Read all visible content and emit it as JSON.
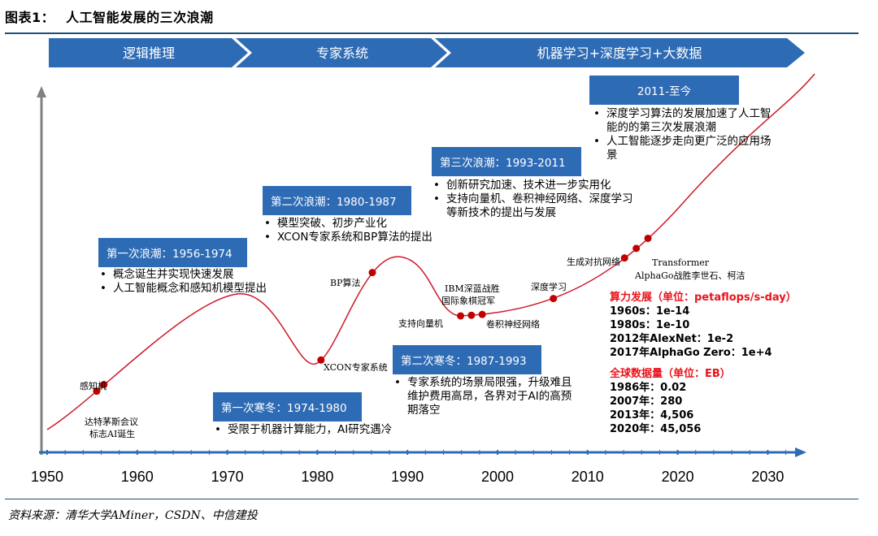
{
  "figure": {
    "number": "图表1：",
    "title": "人工智能发展的三次浪潮",
    "source": "资料来源：清华大学AMiner，CSDN、中信建投"
  },
  "phases": [
    "逻辑推理",
    "专家系统",
    "机器学习+深度学习+大数据"
  ],
  "axis": {
    "ticks": [
      "1950",
      "1960",
      "1970",
      "1980",
      "1990",
      "2000",
      "2010",
      "2020",
      "2030"
    ]
  },
  "events": [
    {
      "year": 1955.5,
      "label": "达特茅斯会议\n标志AI诞生"
    },
    {
      "year": 1956.3,
      "label": "感知机"
    },
    {
      "year": 1980.4,
      "label": "XCON专家系统"
    },
    {
      "year": 1986.1,
      "label": "BP算法"
    },
    {
      "year": 1995.9,
      "label": "支持向量机"
    },
    {
      "year": 1997.1,
      "label": "IBM深蓝战胜\n国际象棋冠军"
    },
    {
      "year": 1998.3,
      "label": "卷积神经网络"
    },
    {
      "year": 2006.2,
      "label": "深度学习"
    },
    {
      "year": 2014.1,
      "label": "生成对抗网络"
    },
    {
      "year": 2015.4,
      "label": "AlphaGo战胜李世石、柯洁"
    },
    {
      "year": 2016.7,
      "label": "Transformer"
    }
  ],
  "eras": [
    {
      "title": "第一次浪潮：1956-1974",
      "points": [
        "概念诞生并实现快速发展",
        "人工智能概念和感知机模型提出"
      ]
    },
    {
      "title": "第一次寒冬：1974-1980",
      "points": [
        "受限于机器计算能力，AI研究遇冷"
      ]
    },
    {
      "title": "第二次浪潮：1980-1987",
      "points": [
        "模型突破、初步产业化",
        "XCON专家系统和BP算法的提出"
      ]
    },
    {
      "title": "第二次寒冬：1987-1993",
      "points": [
        "专家系统的场景局限强，升级难且维护费用高昂，各界对于AI的高预期落空"
      ]
    },
    {
      "title": "第三次浪潮：1993-2011",
      "points": [
        "创新研究加速、技术进一步实用化",
        "支持向量机、卷积神经网络、深度学习等新技术的提出与发展"
      ]
    },
    {
      "title": "2011-至今",
      "points": [
        "深度学习算法的发展加速了人工智能的的第三次发展浪潮",
        "人工智能逐步走向更广泛的应用场景"
      ]
    }
  ],
  "compute": {
    "title": "算力发展（单位：petaflops/s-day）",
    "rows": [
      "1960s：1e-14",
      "1980s：1e-10",
      "2012年AlexNet：1e-2",
      "2017年AlphaGo Zero：1e+4"
    ]
  },
  "data_volume": {
    "title": "全球数据量（单位：EB）",
    "rows": [
      "1986年：0.02",
      "2007年：280",
      "2013年：4,506",
      "2020年：45,056"
    ]
  },
  "colors": {
    "phase_fill": "#2e6bb5",
    "era_box": "#2e6bb5",
    "axis": "#2e6bb5",
    "curve": "#d0182a",
    "dot": "#c00000",
    "stats_head": "#e8141b"
  }
}
